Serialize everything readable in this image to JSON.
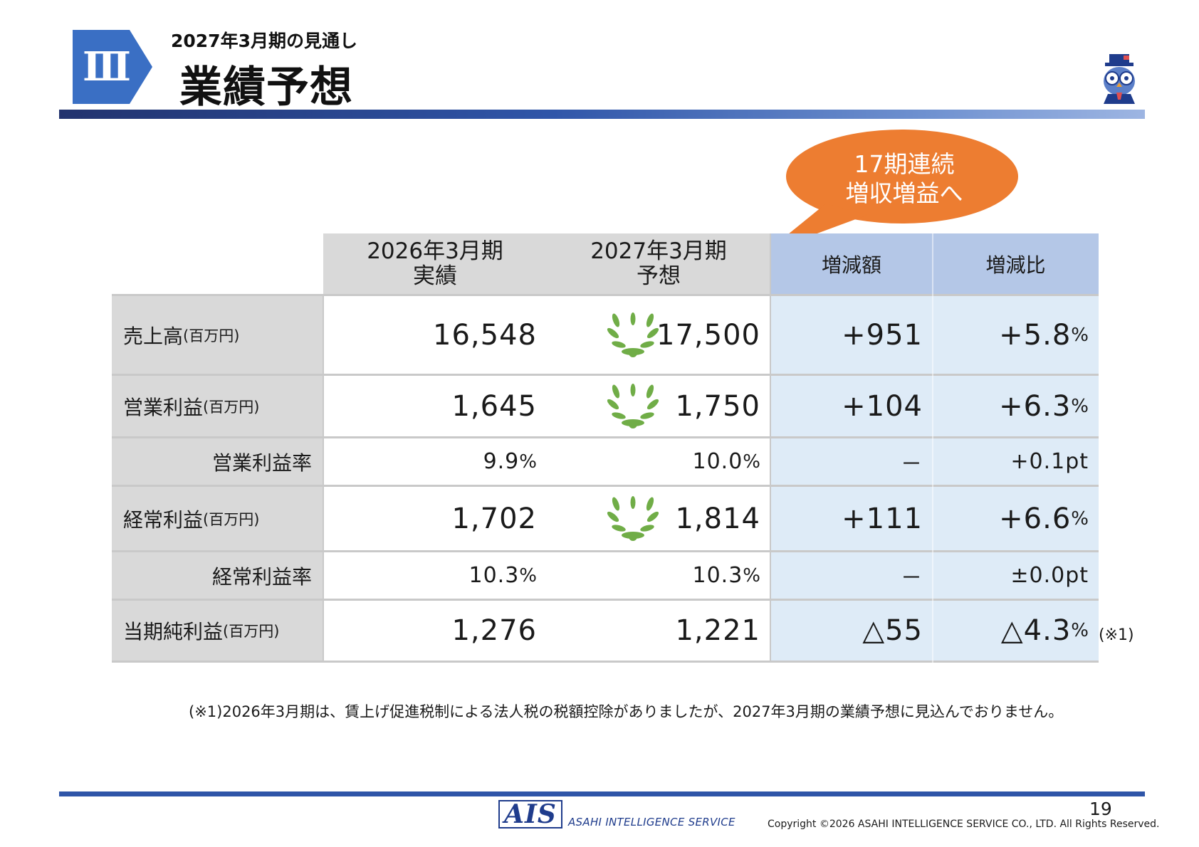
{
  "header": {
    "section_numeral": "Ⅲ",
    "subtitle": "2027年3月期の見通し",
    "title": "業績予想"
  },
  "callout": {
    "line1": "17期連続",
    "line2": "増収増益へ"
  },
  "table": {
    "columns": {
      "actual_line1": "2026年3月期",
      "actual_line2": "実績",
      "forecast_line1": "2027年3月期",
      "forecast_line2": "予想",
      "change_amount": "増減額",
      "change_ratio": "増減比"
    },
    "rows": [
      {
        "label": "売上高",
        "unit": "(百万円)",
        "actual": "16,548",
        "forecast": "17,500",
        "change": "+951",
        "ratio": "+5.8",
        "ratio_suffix": "%",
        "wreath": true
      },
      {
        "label": "営業利益",
        "unit": "(百万円)",
        "actual": "1,645",
        "forecast": "1,750",
        "change": "+104",
        "ratio": "+6.3",
        "ratio_suffix": "%",
        "wreath": true
      },
      {
        "label": "営業利益率",
        "unit": "",
        "actual": "9.9",
        "actual_suffix": "%",
        "forecast": "10.0",
        "forecast_suffix": "%",
        "change": "－",
        "ratio": "+0.1pt",
        "wreath": false
      },
      {
        "label": "経常利益",
        "unit": "(百万円)",
        "actual": "1,702",
        "forecast": "1,814",
        "change": "+111",
        "ratio": "+6.6",
        "ratio_suffix": "%",
        "wreath": true
      },
      {
        "label": "経常利益率",
        "unit": "",
        "actual": "10.3",
        "actual_suffix": "%",
        "forecast": "10.3",
        "forecast_suffix": "%",
        "change": "－",
        "ratio": "±0.0pt",
        "wreath": false
      },
      {
        "label": "当期純利益",
        "unit": "(百万円)",
        "actual": "1,276",
        "forecast": "1,221",
        "change": "△55",
        "ratio": "△4.3",
        "ratio_suffix": "%",
        "wreath": false
      }
    ],
    "note_marker": "(※1)"
  },
  "footnote": "(※1)2026年3月期は、賃上げ促進税制による法人税の税額控除がありましたが、2027年3月期の業績予想に見込んでおりません。",
  "footer": {
    "logo": "AIS",
    "company": "ASAHI INTELLIGENCE SERVICE",
    "page_number": "19",
    "copyright": "Copyright ©2026 ASAHI INTELLIGENCE SERVICE CO., LTD. All Rights Reserved."
  },
  "colors": {
    "accent_blue": "#3a6fc4",
    "callout_orange": "#ed7d31",
    "header_blue_cell": "#b4c7e7",
    "light_blue_cell": "#deebf7",
    "gray_cell": "#d9d9d9",
    "wreath_green": "#70ad47"
  }
}
